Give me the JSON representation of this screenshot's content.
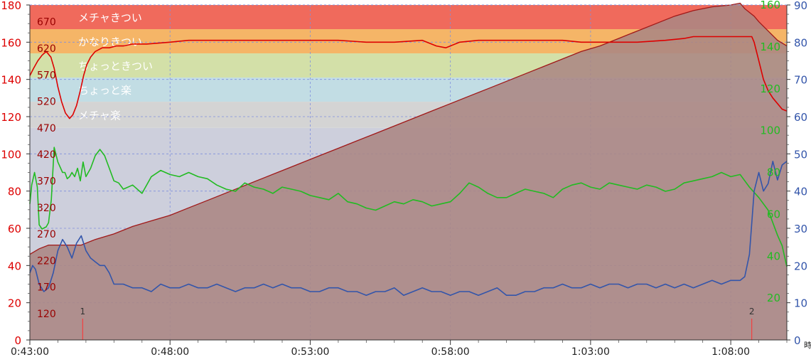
{
  "chart_data": {
    "type": "line",
    "title": "",
    "x_axis": {
      "min_seconds": 2580,
      "max_seconds": 4200,
      "tick_labels": [
        "0:43:00",
        "0:48:00",
        "0:53:00",
        "0:58:00",
        "1:03:00",
        "1:08:00"
      ],
      "tick_values_seconds": [
        2580,
        2880,
        3180,
        3480,
        3780,
        4080
      ],
      "extra_label": "時"
    },
    "left_axis": {
      "color": "#dd0000",
      "range": [
        0,
        180
      ],
      "ticks": [
        0,
        20,
        40,
        60,
        80,
        100,
        120,
        140,
        160,
        180
      ]
    },
    "left_inner_axis": {
      "color": "#990000",
      "ticks": [
        120,
        170,
        220,
        270,
        320,
        370,
        420,
        470,
        520,
        570,
        620,
        670
      ]
    },
    "right_inner_axis": {
      "color": "#22bb22",
      "range": [
        0,
        160
      ],
      "ticks": [
        20,
        40,
        60,
        80,
        100,
        120,
        140,
        160
      ]
    },
    "right_axis": {
      "color": "#3355aa",
      "range": [
        0,
        90
      ],
      "ticks": [
        0,
        10,
        20,
        30,
        40,
        50,
        60,
        70,
        80,
        90
      ]
    },
    "zones": [
      {
        "label": "メチャきつい",
        "from": 167,
        "to": 180,
        "color": "#f06a5c"
      },
      {
        "label": "かなりきつい",
        "from": 154,
        "to": 167,
        "color": "#f5b567"
      },
      {
        "label": "ちょっときつい",
        "from": 141,
        "to": 154,
        "color": "#d3e0a8"
      },
      {
        "label": "ちょっと楽",
        "from": 128,
        "to": 141,
        "color": "#c2dde4"
      },
      {
        "label": "メチャ楽",
        "from": 114,
        "to": 128,
        "color": "#d4d4d4"
      }
    ],
    "below_zone_color": "#cdcfdc",
    "laps": [
      {
        "label": "1",
        "x_seconds": 2693
      },
      {
        "label": "2",
        "x_seconds": 4125
      }
    ],
    "series": [
      {
        "axis": "left",
        "color": "#dd0000",
        "x_seconds": [
          2580,
          2588,
          2597,
          2606,
          2615,
          2625,
          2632,
          2640,
          2648,
          2656,
          2665,
          2672,
          2680,
          2688,
          2695,
          2702,
          2710,
          2720,
          2735,
          2750,
          2765,
          2780,
          2800,
          2830,
          2880,
          2920,
          2960,
          3000,
          3040,
          3080,
          3120,
          3180,
          3240,
          3300,
          3360,
          3420,
          3450,
          3470,
          3480,
          3500,
          3540,
          3600,
          3660,
          3720,
          3760,
          3780,
          3820,
          3880,
          3940,
          3980,
          4000,
          4050,
          4080,
          4100,
          4115,
          4125,
          4130,
          4140,
          4150,
          4160,
          4170,
          4180,
          4190,
          4200
        ],
        "values": [
          142,
          146,
          150,
          153,
          155,
          152,
          146,
          136,
          128,
          122,
          119,
          121,
          126,
          134,
          142,
          148,
          152,
          155,
          157,
          157,
          158,
          158,
          159,
          159,
          160,
          161,
          161,
          161,
          161,
          161,
          161,
          161,
          161,
          160,
          160,
          161,
          158,
          157,
          158,
          160,
          161,
          161,
          161,
          161,
          160,
          160,
          160,
          160,
          161,
          162,
          163,
          163,
          163,
          163,
          163,
          163,
          160,
          150,
          140,
          134,
          130,
          127,
          124,
          123
        ]
      },
      {
        "axis": "right_inner",
        "color": "#22bb22",
        "x_seconds": [
          2580,
          2584,
          2590,
          2596,
          2600,
          2606,
          2615,
          2620,
          2626,
          2632,
          2640,
          2650,
          2655,
          2660,
          2665,
          2670,
          2676,
          2682,
          2688,
          2694,
          2700,
          2710,
          2720,
          2730,
          2740,
          2750,
          2760,
          2770,
          2780,
          2800,
          2820,
          2840,
          2860,
          2880,
          2900,
          2920,
          2940,
          2960,
          2980,
          3000,
          3020,
          3040,
          3060,
          3080,
          3100,
          3120,
          3140,
          3160,
          3180,
          3200,
          3220,
          3240,
          3260,
          3280,
          3300,
          3320,
          3340,
          3360,
          3380,
          3400,
          3420,
          3440,
          3460,
          3480,
          3500,
          3520,
          3540,
          3560,
          3580,
          3600,
          3620,
          3640,
          3660,
          3680,
          3700,
          3720,
          3740,
          3760,
          3780,
          3800,
          3820,
          3840,
          3860,
          3880,
          3900,
          3920,
          3940,
          3960,
          3980,
          4000,
          4020,
          4040,
          4060,
          4080,
          4100,
          4120,
          4140,
          4160,
          4180,
          4190,
          4200
        ],
        "values": [
          65,
          74,
          80,
          73,
          55,
          53,
          54,
          56,
          67,
          92,
          85,
          80,
          80,
          77,
          78,
          80,
          78,
          82,
          76,
          85,
          78,
          82,
          88,
          91,
          88,
          82,
          76,
          75,
          72,
          74,
          70,
          78,
          81,
          79,
          78,
          80,
          78,
          77,
          74,
          72,
          71,
          75,
          73,
          72,
          70,
          73,
          72,
          71,
          69,
          68,
          67,
          70,
          66,
          65,
          63,
          62,
          64,
          66,
          65,
          67,
          66,
          64,
          65,
          66,
          70,
          75,
          73,
          70,
          68,
          68,
          70,
          72,
          71,
          70,
          68,
          72,
          74,
          75,
          73,
          72,
          75,
          74,
          73,
          72,
          74,
          73,
          71,
          72,
          75,
          76,
          77,
          78,
          80,
          78,
          79,
          73,
          68,
          62,
          50,
          45,
          35
        ]
      },
      {
        "axis": "right",
        "color": "#3355aa",
        "x_seconds": [
          2580,
          2586,
          2592,
          2600,
          2610,
          2620,
          2630,
          2640,
          2650,
          2660,
          2670,
          2680,
          2690,
          2700,
          2710,
          2720,
          2730,
          2740,
          2750,
          2760,
          2780,
          2800,
          2820,
          2840,
          2860,
          2880,
          2900,
          2920,
          2940,
          2960,
          2980,
          3000,
          3020,
          3040,
          3060,
          3080,
          3100,
          3120,
          3140,
          3160,
          3180,
          3200,
          3220,
          3240,
          3260,
          3280,
          3300,
          3320,
          3340,
          3360,
          3380,
          3400,
          3420,
          3440,
          3460,
          3480,
          3500,
          3520,
          3540,
          3560,
          3580,
          3600,
          3620,
          3640,
          3660,
          3680,
          3700,
          3720,
          3740,
          3760,
          3780,
          3800,
          3820,
          3840,
          3860,
          3880,
          3900,
          3920,
          3940,
          3960,
          3980,
          4000,
          4020,
          4040,
          4060,
          4080,
          4100,
          4110,
          4120,
          4130,
          4140,
          4150,
          4160,
          4170,
          4180,
          4190,
          4200
        ],
        "values": [
          18,
          20,
          19,
          15,
          13,
          14,
          18,
          24,
          27,
          25,
          22,
          26,
          28,
          24,
          22,
          21,
          20,
          20,
          18,
          15,
          15,
          14,
          14,
          13,
          15,
          14,
          14,
          15,
          14,
          14,
          15,
          14,
          13,
          14,
          14,
          15,
          14,
          15,
          14,
          14,
          13,
          13,
          14,
          14,
          13,
          13,
          12,
          13,
          13,
          14,
          12,
          13,
          14,
          13,
          13,
          12,
          13,
          13,
          12,
          13,
          14,
          12,
          12,
          13,
          13,
          14,
          14,
          15,
          14,
          14,
          15,
          14,
          15,
          15,
          14,
          15,
          15,
          14,
          15,
          14,
          15,
          14,
          15,
          16,
          15,
          16,
          16,
          17,
          23,
          40,
          45,
          40,
          42,
          48,
          43,
          47,
          48
        ]
      }
    ],
    "area_series": {
      "axis": "left",
      "fill": "#ab8683",
      "stroke": "#a01818",
      "x_seconds": [
        2580,
        2600,
        2620,
        2660,
        2690,
        2720,
        2760,
        2800,
        2840,
        2880,
        2920,
        2960,
        3000,
        3040,
        3080,
        3120,
        3160,
        3200,
        3240,
        3280,
        3320,
        3360,
        3400,
        3440,
        3480,
        3520,
        3560,
        3600,
        3640,
        3680,
        3720,
        3760,
        3800,
        3840,
        3880,
        3920,
        3960,
        4000,
        4040,
        4080,
        4100,
        4110,
        4120,
        4130,
        4140,
        4160,
        4180,
        4200
      ],
      "values": [
        46,
        49,
        51,
        51,
        51,
        54,
        57,
        61,
        64,
        67,
        71,
        75,
        79,
        83,
        87,
        91,
        95,
        99,
        103,
        107,
        111,
        115,
        119,
        123,
        127,
        131,
        135,
        139,
        143,
        147,
        151,
        155,
        158,
        162,
        166,
        170,
        174,
        177,
        179,
        180,
        181,
        178,
        176,
        174,
        171,
        166,
        161,
        158
      ]
    },
    "grid": true,
    "legend": "none"
  }
}
